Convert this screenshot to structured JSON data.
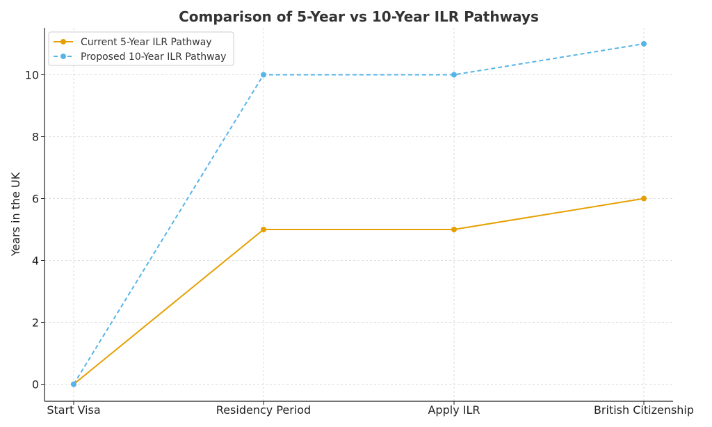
{
  "chart_data": {
    "type": "line",
    "title": "Comparison of 5-Year vs 10-Year ILR Pathways",
    "xlabel": "",
    "ylabel": "Years in the UK",
    "categories": [
      "Start Visa",
      "Residency Period",
      "Apply ILR",
      "British Citizenship"
    ],
    "ylim": [
      -0.55,
      11.5
    ],
    "yticks": [
      0,
      2,
      4,
      6,
      8,
      10
    ],
    "grid": true,
    "legend_position": "top-left",
    "series": [
      {
        "name": "Current 5-Year ILR Pathway",
        "values": [
          0,
          5,
          5,
          6
        ],
        "color": "#E69F00",
        "style": "solid",
        "marker": "circle"
      },
      {
        "name": "Proposed 10-Year ILR Pathway",
        "values": [
          0,
          10,
          10,
          11
        ],
        "color": "#56B4E9",
        "style": "dashed",
        "marker": "circle"
      }
    ]
  }
}
